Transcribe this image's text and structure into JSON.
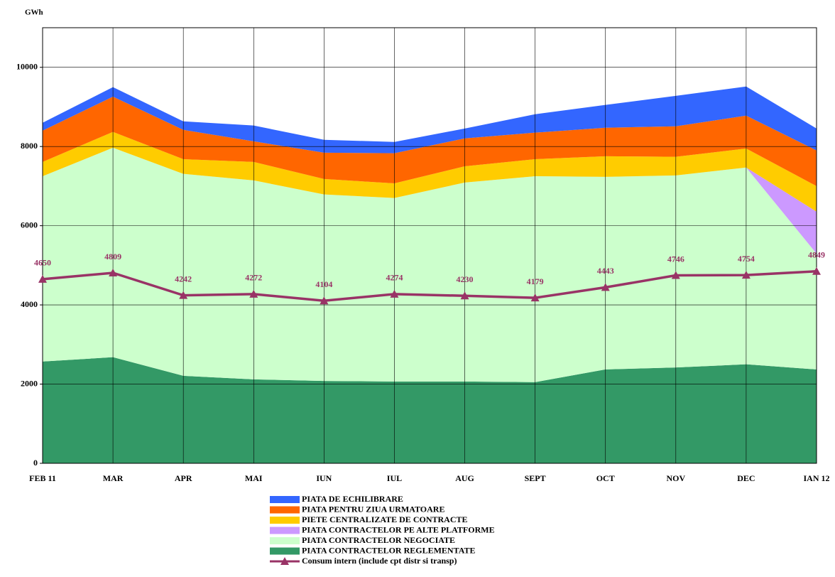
{
  "chart_data": {
    "type": "stacked_area",
    "y_label": "GWh",
    "categories": [
      "FEB 11",
      "MAR",
      "APR",
      "MAI",
      "IUN",
      "IUL",
      "AUG",
      "SEPT",
      "OCT",
      "NOV",
      "DEC",
      "IAN 12"
    ],
    "ylim": [
      0,
      11000
    ],
    "yticks": [
      0,
      2000,
      4000,
      6000,
      8000,
      10000
    ],
    "grid": true,
    "series": [
      {
        "name": "PIATA CONTRACTELOR REGLEMENTATE",
        "color": "#339966",
        "values": [
          2570,
          2680,
          2210,
          2120,
          2080,
          2065,
          2065,
          2050,
          2370,
          2420,
          2500,
          2370
        ]
      },
      {
        "name": "PIATA CONTRACTELOR NEGOCIATE",
        "color": "#CCFFCC",
        "values": [
          4680,
          5290,
          5100,
          5025,
          4710,
          4635,
          5025,
          5200,
          4865,
          4850,
          4970,
          2925
        ]
      },
      {
        "name": "PIATA CONTRACTELOR PE ALTE PLATFORME",
        "color": "#CC99FF",
        "values": [
          0,
          0,
          0,
          0,
          0,
          0,
          0,
          0,
          0,
          0,
          0,
          1060
        ]
      },
      {
        "name": "PIETE CENTRALIZATE DE CONTRACTE",
        "color": "#FFCC00",
        "values": [
          360,
          400,
          370,
          465,
          390,
          370,
          410,
          430,
          520,
          470,
          480,
          645
        ]
      },
      {
        "name": "PIATA PENTRU ZIUA URMATOARE",
        "color": "#FF6600",
        "values": [
          790,
          890,
          740,
          520,
          665,
          760,
          705,
          670,
          720,
          770,
          830,
          900
        ]
      },
      {
        "name": "PIATA DE ECHILIBRARE",
        "color": "#3366FF",
        "values": [
          200,
          240,
          215,
          400,
          325,
          285,
          250,
          465,
          575,
          770,
          735,
          555
        ]
      },
      {
        "name": "Consum intern (include cpt distr si transp)",
        "color": "#993366",
        "type": "line",
        "values": [
          4650,
          4809,
          4242,
          4272,
          4104,
          4274,
          4230,
          4179,
          4443,
          4746,
          4754,
          4849
        ]
      }
    ]
  }
}
